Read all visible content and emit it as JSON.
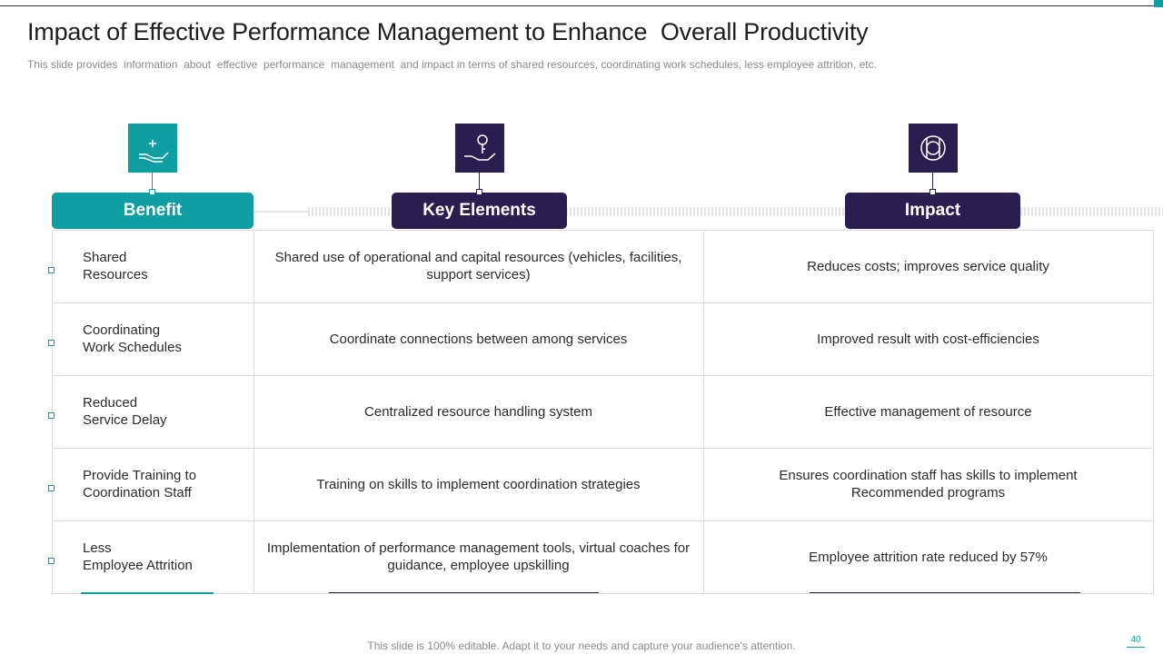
{
  "header": {
    "title": "Impact of Effective Performance Management to Enhance  Overall Productivity",
    "subtitle": "This slide provides  information  about  effective  performance  management  and impact in terms of shared resources, coordinating work schedules, less employee attrition, etc."
  },
  "table": {
    "columns": [
      "Benefit",
      "Key Elements",
      "Impact"
    ],
    "rows": [
      [
        "Shared\nResources",
        "Shared use of operational and capital resources (vehicles, facilities,\nsupport services)",
        "Reduces costs; improves service quality"
      ],
      [
        "Coordinating\nWork Schedules",
        "Coordinate connections between among services",
        "Improved result with cost-efficiencies"
      ],
      [
        "Reduced\nService Delay",
        "Centralized resource handling  system",
        "Effective management of resource"
      ],
      [
        "Provide Training to\nCoordination Staff",
        "Training on skills to implement coordination strategies",
        "Ensures coordination staff has skills to implement\nRecommended programs"
      ],
      [
        "Less\nEmployee Attrition",
        "Implementation of performance management tools, virtual coaches for\nguidance, employee upskilling",
        "Employee attrition rate reduced by 57%"
      ]
    ]
  },
  "footer": {
    "note": "This slide is 100% editable. Adapt it to your needs and capture your audience's attention.",
    "page_number": "40"
  }
}
